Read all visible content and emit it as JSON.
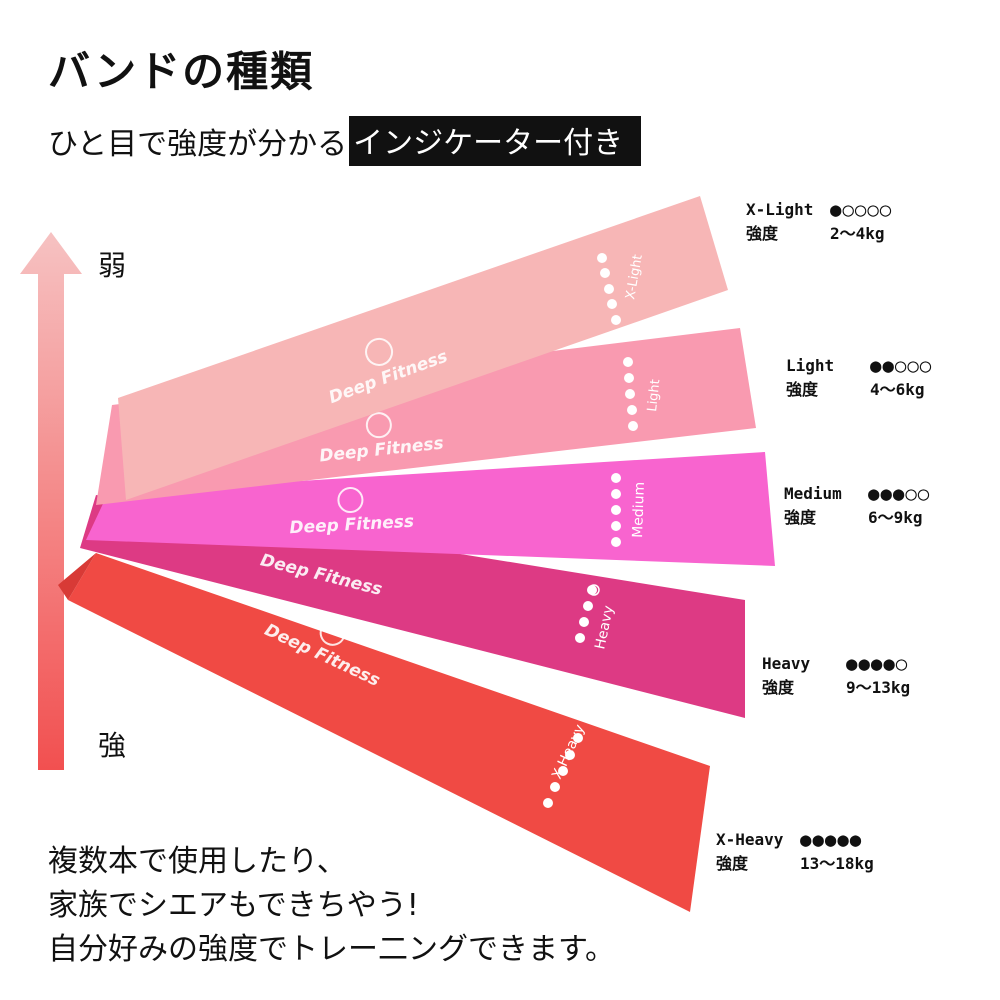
{
  "title": "バンドの種類",
  "subtitle": {
    "text": "ひと目で強度が分かる",
    "highlight": "インジケーター付き"
  },
  "arrow": {
    "top_label": "弱",
    "bottom_label": "強",
    "color_top": "#f6c2c2",
    "color_bottom": "#f25050"
  },
  "bands": [
    {
      "name": "X-Light",
      "brand": "Deep Fitness",
      "level": 1,
      "color": "#f7b6b6"
    },
    {
      "name": "Light",
      "brand": "Deep Fitness",
      "level": 2,
      "color": "#f99ab0"
    },
    {
      "name": "Medium",
      "brand": "Deep Fitness",
      "level": 3,
      "color": "#f864cf"
    },
    {
      "name": "Heavy",
      "brand": "Deep Fitness",
      "level": 4,
      "color": "#dd3a84"
    },
    {
      "name": "X-Heavy",
      "brand": "Deep Fitness",
      "level": 5,
      "color": "#f04a44"
    }
  ],
  "levels": [
    {
      "name": "X-Light",
      "dots": "●○○○○",
      "strength_label": "強度",
      "range": "2〜4kg"
    },
    {
      "name": "Light",
      "dots": "●●○○○",
      "strength_label": "強度",
      "range": "4〜6kg"
    },
    {
      "name": "Medium",
      "dots": "●●●○○",
      "strength_label": "強度",
      "range": "6〜9kg"
    },
    {
      "name": "Heavy",
      "dots": "●●●●○",
      "strength_label": "強度",
      "range": "9〜13kg"
    },
    {
      "name": "X-Heavy",
      "dots": "●●●●●",
      "strength_label": "強度",
      "range": "13〜18kg"
    }
  ],
  "bottom_text": [
    "複数本で使用したり、",
    "家族でシエアもできちやう!",
    "自分好みの強度でトレー二ングできます。"
  ]
}
